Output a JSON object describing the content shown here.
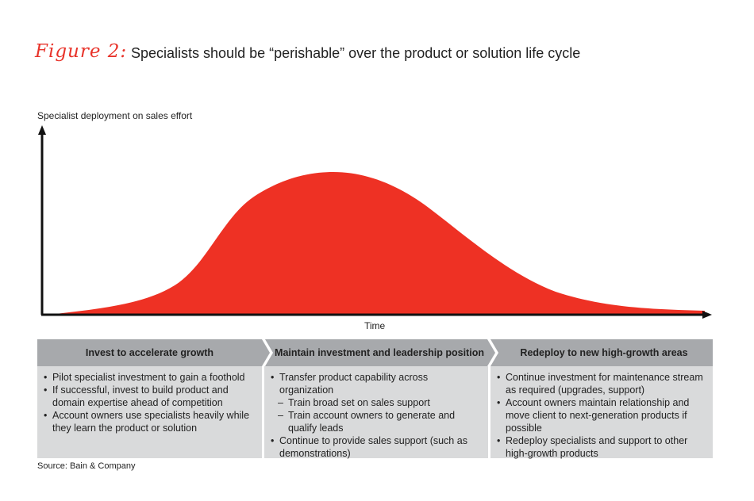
{
  "figure_label": "Figure 2:",
  "title": "Specialists should be “perishable” over the product or solution life cycle",
  "y_axis_label": "Specialist deployment on sales effort",
  "x_axis_label": "Time",
  "colors": {
    "curve": "#ee3124",
    "header": "#a7a9ac",
    "body": "#d9dadb",
    "figure_label": "#e8332a"
  },
  "phases": [
    {
      "title": "Invest to accelerate growth",
      "items": [
        {
          "type": "bullet",
          "text": "Pilot specialist investment to gain a foothold"
        },
        {
          "type": "bullet",
          "text": "If successful, invest to build product and domain expertise ahead of competition"
        },
        {
          "type": "bullet",
          "text": "Account owners use specialists heavily while they learn the product or solution"
        }
      ]
    },
    {
      "title": "Maintain investment and leadership position",
      "items": [
        {
          "type": "bullet",
          "text": "Transfer product capability across organization"
        },
        {
          "type": "sub",
          "text": "Train broad set on sales support"
        },
        {
          "type": "sub",
          "text": "Train account owners to generate and qualify leads"
        },
        {
          "type": "bullet",
          "text": "Continue to provide sales support (such as demonstrations)"
        }
      ]
    },
    {
      "title": "Redeploy to new high-growth areas",
      "items": [
        {
          "type": "bullet",
          "text": "Continue investment for maintenance stream as required (upgrades, support)"
        },
        {
          "type": "bullet",
          "text": "Account owners maintain relationship and move client to next-generation products if possible"
        },
        {
          "type": "bullet",
          "text": "Redeploy specialists and support to other high-growth products"
        }
      ]
    }
  ],
  "source": "Source: Bain & Company"
}
